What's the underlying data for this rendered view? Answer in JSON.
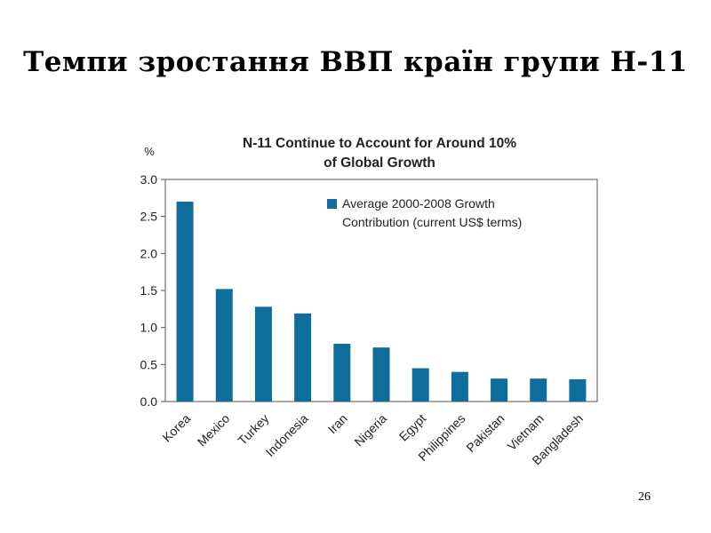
{
  "slide": {
    "title": "Темпи зростання ВВП країн групи Н-11",
    "page_number": "26"
  },
  "colors": {
    "bar": "#0e6d9a",
    "axis": "#444444",
    "text": "#222222"
  },
  "chart_data": {
    "type": "bar",
    "title_line1": "N-11 Continue to Account for Around 10%",
    "title_line2": "of Global Growth",
    "ylabel": "%",
    "ylim": [
      0,
      3.0
    ],
    "yticks": [
      0.0,
      0.5,
      1.0,
      1.5,
      2.0,
      2.5,
      3.0
    ],
    "ytick_labels": [
      "0.0",
      "0.5",
      "1.0",
      "1.5",
      "2.0",
      "2.5",
      "3.0"
    ],
    "categories": [
      "Korea",
      "Mexico",
      "Turkey",
      "Indonesia",
      "Iran",
      "Nigeria",
      "Egypt",
      "Philippines",
      "Pakistan",
      "Vietnam",
      "Bangladesh"
    ],
    "values": [
      2.7,
      1.52,
      1.28,
      1.19,
      0.78,
      0.73,
      0.45,
      0.4,
      0.31,
      0.31,
      0.3
    ],
    "legend_line1": "Average 2000-2008 Growth",
    "legend_line2": "Contribution (current US$ terms)",
    "legend_position": "top-right"
  }
}
